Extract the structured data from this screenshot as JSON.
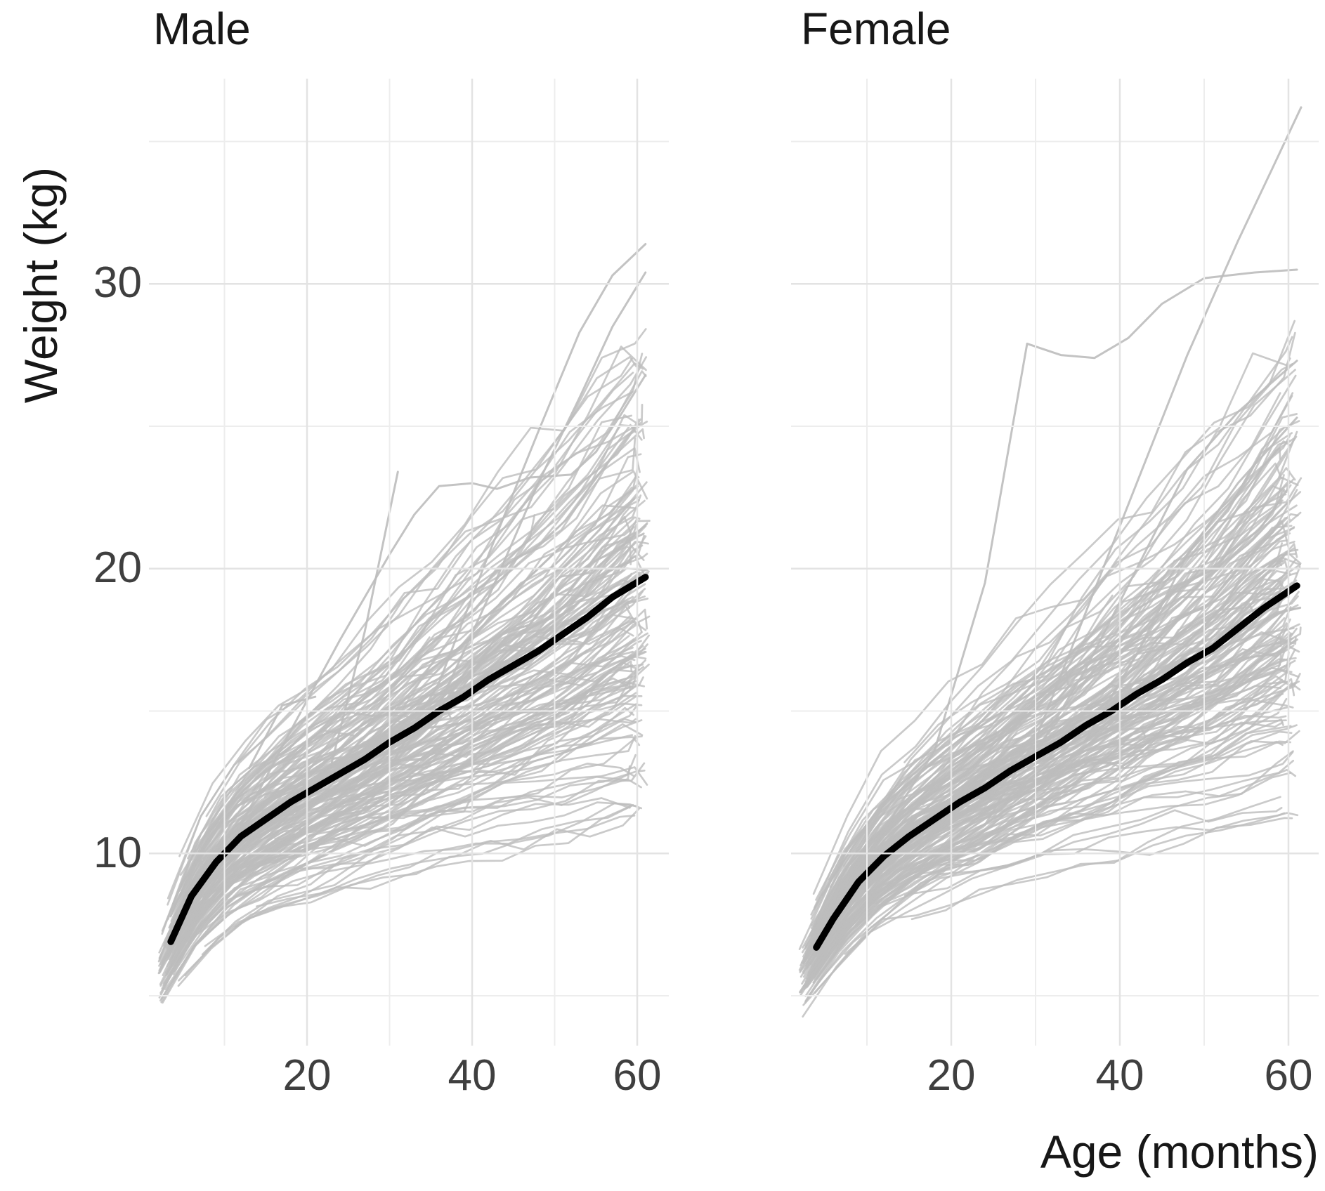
{
  "figure": {
    "y_axis_title": "Weight (kg)",
    "x_axis_title": "Age (months)"
  },
  "chart_data": {
    "type": "line",
    "title": "",
    "description": "Faceted spaghetti plot of child weight-for-age trajectories; light gray lines are individual children, thick black line is the mean growth curve per sex.",
    "legend": "none",
    "grid": "on",
    "axes": {
      "x": {
        "label": "Age (months)",
        "tick_labels": [
          "20",
          "40",
          "60"
        ],
        "tick_values": [
          20,
          40,
          60
        ],
        "minor_values": [
          10,
          30,
          50
        ],
        "range": [
          1,
          64
        ]
      },
      "y": {
        "label": "Weight (kg)",
        "tick_labels": [
          "10",
          "20",
          "30"
        ],
        "tick_values": [
          10,
          20,
          30
        ],
        "minor_values": [
          5,
          15,
          25,
          35
        ],
        "range": [
          3.2,
          37.2
        ]
      }
    },
    "styles": {
      "individual_color": "#bdbdbd",
      "individual_width": 2.7,
      "individual_opacity": 0.8,
      "mean_color": "#000000",
      "mean_width": 9.5,
      "grid_major_color": "#e3e3e3",
      "grid_minor_color": "#ededed",
      "background": "#ffffff"
    },
    "facets": [
      {
        "label": "Male",
        "mean_curve": {
          "ages": [
            3.5,
            6,
            9,
            12,
            15,
            18,
            21,
            24,
            27,
            30,
            33,
            36,
            39,
            42,
            45,
            48,
            51,
            54,
            57,
            61
          ],
          "weights": [
            6.9,
            8.5,
            9.7,
            10.6,
            11.2,
            11.8,
            12.3,
            12.8,
            13.3,
            13.9,
            14.4,
            15.0,
            15.5,
            16.1,
            16.6,
            17.1,
            17.7,
            18.3,
            19.0,
            19.7
          ]
        },
        "individual_trajectories": {
          "n": 175,
          "seed": 11,
          "start_age_range": [
            2,
            18
          ],
          "end_age_max": 61.5,
          "start_weight_range": [
            4.3,
            9.8
          ],
          "end_weight_range": [
            13,
            27
          ],
          "relative_sd": 0.12,
          "slope_sd": 0.16
        },
        "outlier_trajectories": [
          {
            "ages": [
              23,
              27,
              31
            ],
            "weights": [
              13.2,
              17.8,
              23.4
            ]
          },
          {
            "ages": [
              12,
              18,
              24,
              30,
              33,
              36,
              40,
              43,
              47,
              52,
              55,
              58,
              61
            ],
            "weights": [
              11.0,
              14.3,
              17.5,
              20.5,
              21.9,
              22.9,
              23.0,
              22.8,
              23.2,
              23.3,
              24.1,
              25.4,
              26.8
            ]
          },
          {
            "ages": [
              30,
              36,
              42,
              48,
              53,
              57,
              61
            ],
            "weights": [
              13.0,
              16.0,
              20.5,
              24.8,
              28.3,
              30.3,
              31.4
            ]
          },
          {
            "ages": [
              36,
              42,
              48,
              53,
              57,
              61
            ],
            "weights": [
              15.2,
              19.0,
              23.0,
              26.0,
              28.5,
              30.4
            ]
          },
          {
            "ages": [
              13,
              17,
              21
            ],
            "weights": [
              13.0,
              15.2,
              15.5
            ]
          }
        ]
      },
      {
        "label": "Female",
        "mean_curve": {
          "ages": [
            4,
            6,
            9,
            12,
            15,
            18,
            21,
            24,
            27,
            30,
            33,
            36,
            39,
            42,
            45,
            48,
            51,
            54,
            57,
            61
          ],
          "weights": [
            6.7,
            7.7,
            9.0,
            9.9,
            10.6,
            11.2,
            11.8,
            12.3,
            12.9,
            13.4,
            13.9,
            14.5,
            15.0,
            15.6,
            16.1,
            16.7,
            17.2,
            17.9,
            18.6,
            19.4
          ]
        },
        "individual_trajectories": {
          "n": 175,
          "seed": 23,
          "start_age_range": [
            2,
            18
          ],
          "end_age_max": 61.5,
          "start_weight_range": [
            4.2,
            9.5
          ],
          "end_weight_range": [
            12.8,
            26.5
          ],
          "relative_sd": 0.12,
          "slope_sd": 0.16
        },
        "outlier_trajectories": [
          {
            "ages": [
              6,
              12,
              18,
              24,
              29,
              33,
              37,
              41,
              45,
              50,
              56,
              61
            ],
            "weights": [
              8.0,
              10.8,
              13.6,
              19.5,
              27.9,
              27.5,
              27.4,
              28.1,
              29.3,
              30.2,
              30.4,
              30.5
            ]
          },
          {
            "ages": [
              24,
              30,
              36,
              42,
              48,
              54,
              58,
              61.5
            ],
            "weights": [
              11.0,
              14.0,
              18.5,
              23.0,
              27.5,
              31.5,
              34.0,
              36.2
            ]
          },
          {
            "ages": [
              30,
              36,
              42,
              48,
              54,
              61
            ],
            "weights": [
              13.5,
              16.5,
              20.0,
              23.5,
              25.5,
              27.3
            ]
          },
          {
            "ages": [
              36,
              42,
              48,
              54,
              61
            ],
            "weights": [
              14.0,
              17.0,
              20.5,
              23.0,
              25.3
            ]
          }
        ]
      }
    ]
  }
}
